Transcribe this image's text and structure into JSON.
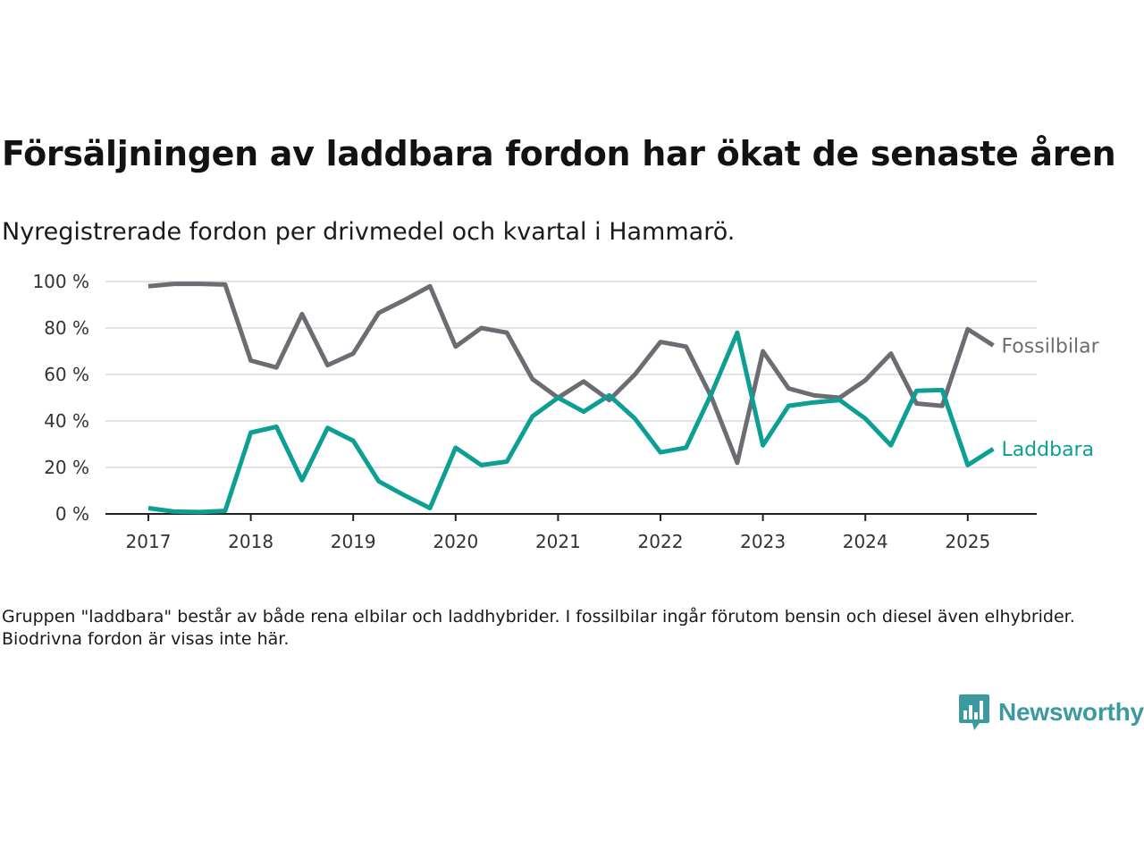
{
  "header": {
    "title": "Försäljningen av laddbara fordon har ökat de senaste åren",
    "subtitle": "Nyregistrerade fordon per drivmedel och kvartal i Hammarö."
  },
  "footnote": "Gruppen \"laddbara\" består av både rena elbilar och laddhybrider. I fossilbilar ingår förutom bensin och diesel även elhybrider. Biodrivna fordon är visas inte här.",
  "brand": {
    "name": "Newsworthy",
    "icon": "newsworthy-chart-bubble-icon",
    "color": "#3b9aa0"
  },
  "chart_data": {
    "type": "line",
    "x_unit": "quarter",
    "x": [
      "2017-Q1",
      "2017-Q2",
      "2017-Q3",
      "2017-Q4",
      "2018-Q1",
      "2018-Q2",
      "2018-Q3",
      "2018-Q4",
      "2019-Q1",
      "2019-Q2",
      "2019-Q3",
      "2019-Q4",
      "2020-Q1",
      "2020-Q2",
      "2020-Q3",
      "2020-Q4",
      "2021-Q1",
      "2021-Q2",
      "2021-Q3",
      "2021-Q4",
      "2022-Q1",
      "2022-Q2",
      "2022-Q3",
      "2022-Q4",
      "2023-Q1",
      "2023-Q2",
      "2023-Q3",
      "2023-Q4",
      "2024-Q1",
      "2024-Q2",
      "2024-Q3",
      "2024-Q4",
      "2025-Q1",
      "2025-Q2"
    ],
    "series": [
      {
        "name": "Fossilbilar",
        "color": "#6d6c72",
        "values": [
          98,
          99,
          99,
          98.7,
          66,
          63,
          86,
          64,
          69,
          86.5,
          92,
          98,
          72,
          80,
          78,
          58,
          50,
          57,
          49,
          60,
          74,
          72,
          50,
          22,
          70,
          54,
          51,
          50,
          57.5,
          69,
          47.5,
          46.5,
          79.5,
          72.5
        ]
      },
      {
        "name": "Laddbara",
        "color": "#0d9e94",
        "values": [
          2.5,
          1,
          0.8,
          1.3,
          35,
          37.5,
          14.5,
          37,
          31.5,
          14,
          8,
          2.5,
          28.5,
          21,
          22.5,
          42,
          50,
          44,
          51,
          41,
          26.5,
          28.5,
          52,
          78,
          29.5,
          46.5,
          48,
          49,
          41,
          29.5,
          53,
          53.3,
          21,
          28
        ]
      }
    ],
    "xlabel": "",
    "ylabel": "",
    "ylim": [
      0,
      100
    ],
    "y_ticks": [
      0,
      20,
      40,
      60,
      80,
      100
    ],
    "y_tick_labels": [
      "0 %",
      "20 %",
      "40 %",
      "60 %",
      "80 %",
      "100 %"
    ],
    "x_ticks": [
      "2017-Q1",
      "2018-Q1",
      "2019-Q1",
      "2020-Q1",
      "2021-Q1",
      "2022-Q1",
      "2023-Q1",
      "2024-Q1",
      "2025-Q1"
    ],
    "x_tick_labels": [
      "2017",
      "2018",
      "2019",
      "2020",
      "2021",
      "2022",
      "2023",
      "2024",
      "2025"
    ],
    "grid": "horizontal",
    "legend": "direct labels at line ends"
  }
}
